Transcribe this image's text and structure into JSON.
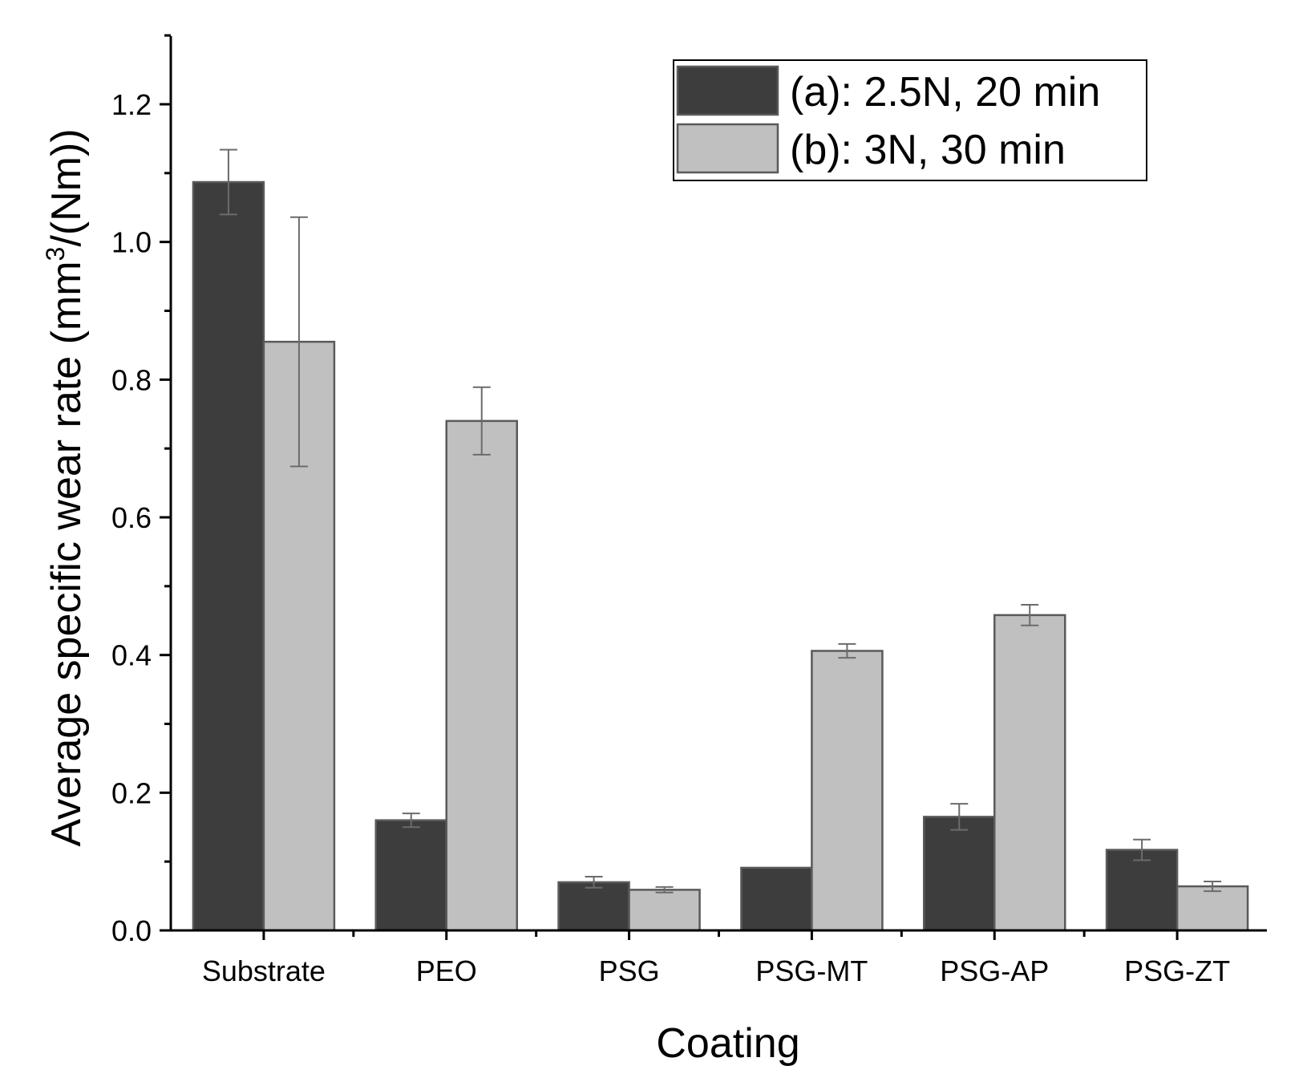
{
  "chart_data": {
    "type": "bar",
    "title": "",
    "xlabel": "Coating",
    "ylabel_main": "Average specific wear rate (mm",
    "ylabel_sup": "3",
    "ylabel_end": "/(Nm))",
    "ylim": [
      0,
      1.3
    ],
    "yticks": [
      0.0,
      0.2,
      0.4,
      0.6,
      0.8,
      1.0,
      1.2
    ],
    "ytick_labels": [
      "0.0",
      "0.2",
      "0.4",
      "0.6",
      "0.8",
      "1.0",
      "1.2"
    ],
    "categories": [
      "Substrate",
      "PEO",
      "PSG",
      "PSG-MT",
      "PSG-AP",
      "PSG-ZT"
    ],
    "series": [
      {
        "name": "(a): 2.5N, 20 min",
        "color": "#3d3d3d",
        "values": [
          1.087,
          0.16,
          0.07,
          0.091,
          0.165,
          0.117
        ],
        "errors": [
          0.047,
          0.01,
          0.008,
          0.0,
          0.019,
          0.015
        ]
      },
      {
        "name": "(b): 3N, 30 min",
        "color": "#c0c0c0",
        "values": [
          0.855,
          0.74,
          0.059,
          0.406,
          0.458,
          0.064
        ],
        "errors": [
          0.181,
          0.049,
          0.004,
          0.01,
          0.015,
          0.007
        ]
      }
    ],
    "legend_position": "top-right"
  }
}
